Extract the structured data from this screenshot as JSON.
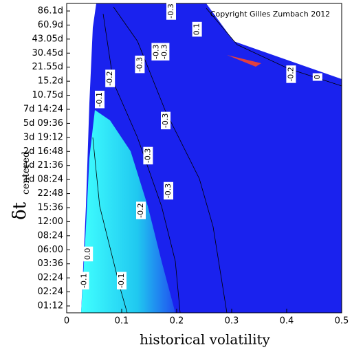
{
  "chart_data": {
    "type": "contour",
    "copyright": "Copyright Gilles Zumbach 2012",
    "xlabel": "historical volatility",
    "ylabel": "δt",
    "ylabel_subscript": "centered",
    "categories": [
      "86.1d",
      "60.9d",
      "43.05d",
      "30.45d",
      "21.55d",
      "15.2d",
      "10.75d",
      "7d 14:24",
      "5d 09:36",
      "3d 19:12",
      "2d 16:48",
      "1d 21:36",
      "1d 08:24",
      "22:48",
      "15:36",
      "12:00",
      "08:24",
      "06:00",
      "03:36",
      "02:24",
      "02:24",
      "01:12"
    ],
    "xlim": [
      0,
      0.5
    ],
    "xticks": [
      0,
      0.1,
      0.2,
      0.3,
      0.4,
      0.5
    ],
    "contour_labels": [
      {
        "text": "-0.3",
        "x": 0.19,
        "y": 0
      },
      {
        "text": "0.1",
        "x": 0.237,
        "y": 1.3
      },
      {
        "text": "-0.3",
        "x": 0.163,
        "y": 2.9
      },
      {
        "text": "-0.3",
        "x": 0.178,
        "y": 2.9
      },
      {
        "text": "-0.3",
        "x": 0.133,
        "y": 3.8
      },
      {
        "text": "-0.2",
        "x": 0.079,
        "y": 4.8
      },
      {
        "text": "-0.1",
        "x": 0.06,
        "y": 6.3
      },
      {
        "text": "-0.2",
        "x": 0.408,
        "y": 4.5
      },
      {
        "text": "0",
        "x": 0.456,
        "y": 4.7
      },
      {
        "text": "-0.3",
        "x": 0.18,
        "y": 7.8
      },
      {
        "text": "-0.3",
        "x": 0.148,
        "y": 10.3
      },
      {
        "text": "-0.3",
        "x": 0.185,
        "y": 12.8
      },
      {
        "text": "-0.2",
        "x": 0.135,
        "y": 14.2
      },
      {
        "text": "0.0",
        "x": 0.039,
        "y": 17.3
      },
      {
        "text": "-0.1",
        "x": 0.032,
        "y": 19.2
      },
      {
        "text": "-0.1",
        "x": 0.1,
        "y": 19.2
      }
    ]
  }
}
